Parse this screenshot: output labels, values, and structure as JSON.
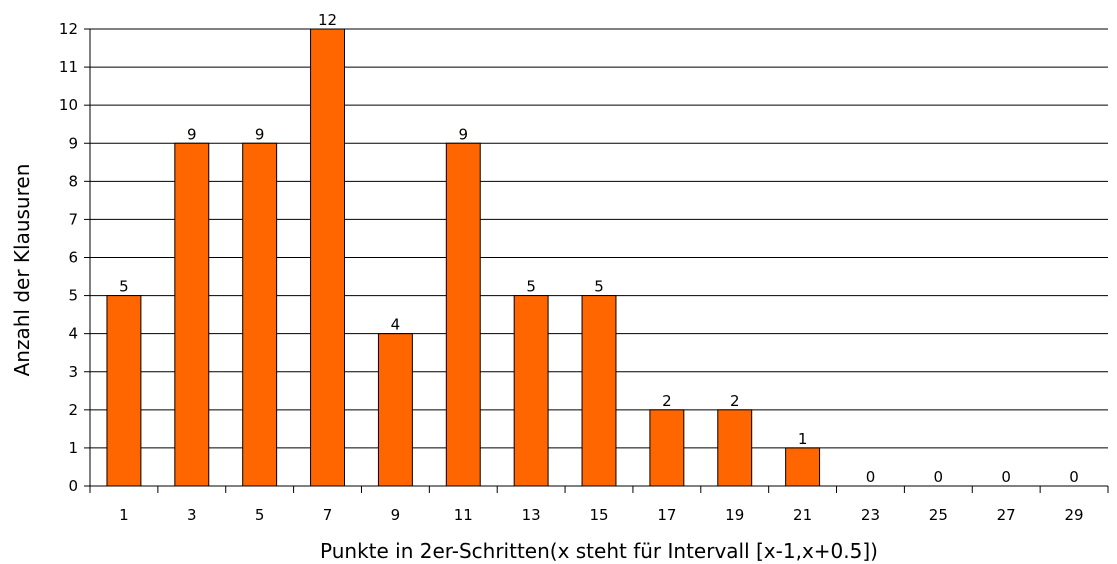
{
  "chart_data": {
    "type": "bar",
    "categories": [
      "1",
      "3",
      "5",
      "7",
      "9",
      "11",
      "13",
      "15",
      "17",
      "19",
      "21",
      "23",
      "25",
      "27",
      "29"
    ],
    "values": [
      5,
      9,
      9,
      12,
      4,
      9,
      5,
      5,
      2,
      2,
      1,
      0,
      0,
      0,
      0
    ],
    "xlabel": "Punkte in 2er-Schritten(x steht für Intervall [x-1,x+0.5])",
    "ylabel": "Anzahl der Klausuren",
    "ylim": [
      0,
      12
    ],
    "yticks": [
      0,
      1,
      2,
      3,
      4,
      5,
      6,
      7,
      8,
      9,
      10,
      11,
      12
    ],
    "grid": true,
    "legend": "none",
    "bar_color": "#ff6600",
    "bar_edge_color": "#000000",
    "data_labels": true
  }
}
